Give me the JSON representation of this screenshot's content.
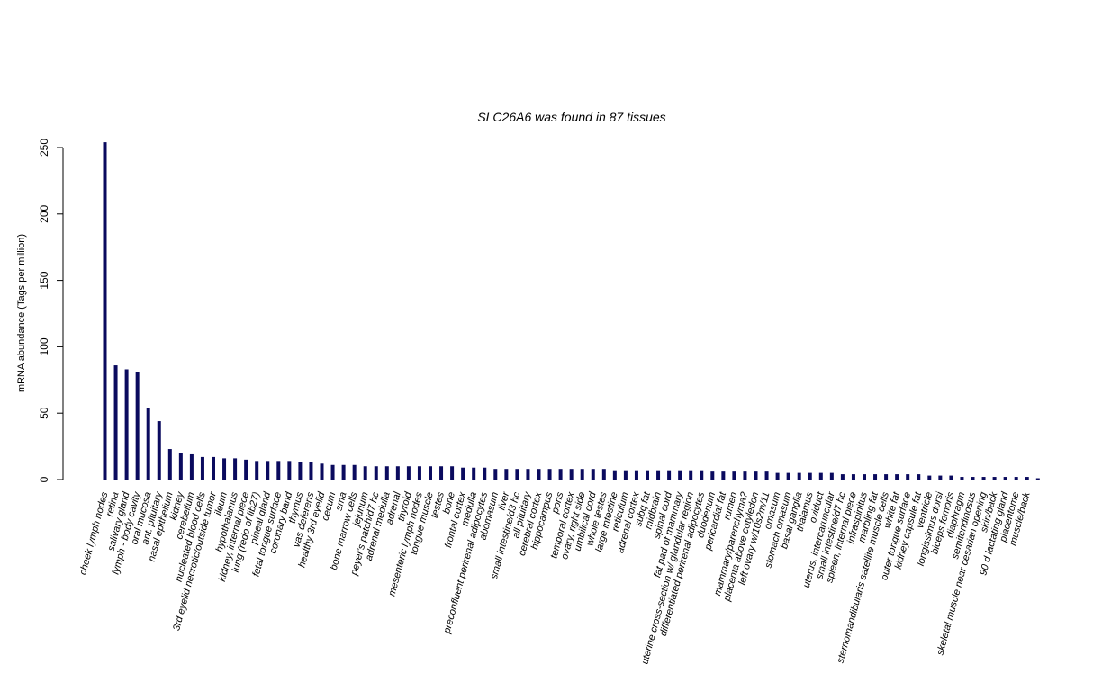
{
  "chart_data": {
    "type": "bar",
    "title": "SLC26A6  was found in  87  tissues",
    "xlabel": "",
    "ylabel": "mRNA abundance (Tags per million)",
    "ylim": [
      0,
      250
    ],
    "yticks": [
      0,
      50,
      100,
      150,
      200,
      250
    ],
    "grid": false,
    "bar_color": "#0a0a5e",
    "categories": [
      "cheek lymph nodes",
      "retina",
      "salivary gland",
      "lymph - body cavity",
      "oral mucosa",
      "ant. pituitary",
      "nasal epithelium",
      "kidney",
      "cerebellum",
      "nucleated blood cells",
      "3rd eyelid necrotic/outside tumor",
      "ileum",
      "hypothalamus",
      "kidney, internal piece",
      "lung (redo of lib27)",
      "pineal gland",
      "fetal tongue surface",
      "coronary band",
      "thymus",
      "vas deferens",
      "healthy 3rd eyelid",
      "cecum",
      "sma",
      "bone marrow cells",
      "jejunum",
      "peyer's patch/d7 hc",
      "adrenal medulla",
      "adrenal",
      "thyroid",
      "mesenteric lymph nodes",
      "tongue muscle",
      "testes",
      "bone",
      "frontal cortex",
      "medulla",
      "preconfluent perirenal adipocytes",
      "abomasum",
      "liver",
      "small intestine/d3 hc",
      "all pituitary",
      "cerebral cortex",
      "hippocampus",
      "pons",
      "temporal cortex",
      "ovary, right side",
      "umbilical cord",
      "whole testes",
      "large intestine",
      "reticulum",
      "adrenal cortex",
      "subq fat",
      "midbrain",
      "spinal cord",
      "fat pad of mammary",
      "uterine cross-section w/ glandular region",
      "differentiated perirenal adipocytes",
      "duodenum",
      "pericardial fat",
      "rumen",
      "mammary/parenchyma?",
      "placenta above cotyledon",
      "left ovary w/10s2m/11",
      "omasum",
      "stomach omasum",
      "basal ganglia",
      "thalamus",
      "oviduct",
      "uterus, intercaruncular",
      "small intestine/d7 hc",
      "spleen, internal piece",
      "infraspinitus",
      "marbling fat",
      "sternomandibularis satellite muscle cells",
      "white fat",
      "outer tongue surface",
      "kidney capsule fat",
      "ventricle",
      "longissimus dorsi",
      "biceps femoris",
      "diaphragm",
      "semitendinosus",
      "skeletal muscle near cesarian opening",
      "skin/back",
      "90 d lactating gland",
      "placentome",
      "muscle/back",
      "muscle/back"
    ],
    "values": [
      254,
      86,
      83,
      81,
      54,
      44,
      23,
      20,
      19,
      17,
      17,
      16,
      16,
      15,
      14,
      14,
      14,
      14,
      13,
      13,
      12,
      11,
      11,
      11,
      10,
      10,
      10,
      10,
      10,
      10,
      10,
      10,
      10,
      9,
      9,
      9,
      8,
      8,
      8,
      8,
      8,
      8,
      8,
      8,
      8,
      8,
      8,
      7,
      7,
      7,
      7,
      7,
      7,
      7,
      7,
      7,
      6,
      6,
      6,
      6,
      6,
      6,
      5,
      5,
      5,
      5,
      5,
      5,
      4,
      4,
      4,
      4,
      4,
      4,
      4,
      4,
      3,
      3,
      3,
      2,
      2,
      2,
      2,
      2,
      2,
      2,
      1
    ],
    "x_labels_shown": [
      "cheek lymph nodes",
      "retina",
      "salivary gland",
      "lymph - body cavity",
      "oral mucosa",
      "ant. pituitary",
      "nasal epithelium",
      "kidney",
      "cerebellum",
      "nucleated blood cells",
      "3rd eyelid necrotic/outside tumor",
      "ileum",
      "hypothalamus",
      "kidney, internal piece",
      "lung (redo of lib27)",
      "pineal gland",
      "fetal tongue surface",
      "coronary band",
      "thymus",
      "vas deferens",
      "healthy 3rd eyelid",
      "cecum",
      "sma",
      "bone marrow cells",
      "jejunum",
      "peyer's patch/d7 hc",
      "adrenal medulla",
      "adrenal",
      "thyroid",
      "mesenteric lymph nodes",
      "tongue muscle",
      "testes",
      "bone",
      "frontal cortex",
      "medulla",
      "preconfluent perirenal adipocytes",
      "abomasum",
      "liver",
      "small intestine/d3 hc",
      "all pituitary",
      "cerebral cortex",
      "hippocampus",
      "pons",
      "temporal cortex",
      "ovary, right side",
      "umbilical cord",
      "whole testes",
      "large intestine",
      "reticulum",
      "adrenal cortex",
      "subq fat",
      "midbrain",
      "spinal cord",
      "fat pad of mammary",
      "uterine cross-section w/ glandular region",
      "differentiated perirenal adipocytes",
      "duodenum",
      "pericardial fat",
      "rumen",
      "mammary/parenchyma?",
      "placenta above cotyledon",
      "left ovary w/10s2m/11",
      "omasum",
      "stomach omasum",
      "basal ganglia",
      "thalamus",
      "oviduct",
      "uterus, intercaruncular",
      "small intestine/d7 hc",
      "spleen, internal piece",
      "infraspinitus",
      "marbling fat",
      "sternomandibularis satellite muscle cells",
      "white fat",
      "outer tongue surface",
      "kidney capsule fat",
      "ventricle",
      "longissimus dorsi",
      "biceps femoris",
      "diaphragm",
      "semitendinosus",
      "skeletal muscle near cesarian opening",
      "skin/back",
      "90 d lactating gland",
      "placentome",
      "muscle/back",
      ""
    ]
  }
}
